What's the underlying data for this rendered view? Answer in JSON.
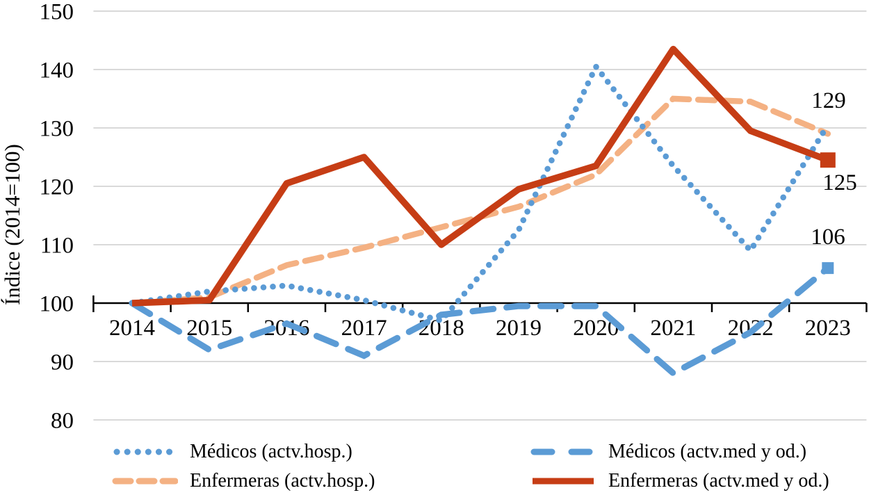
{
  "chart_data": {
    "type": "line",
    "title": "",
    "ylabel": "Índice (2014=100)",
    "xlabel": "",
    "ylim": [
      80,
      150
    ],
    "grid": true,
    "legend_position": "bottom",
    "x": [
      "2014",
      "2015",
      "2016",
      "2017",
      "2018",
      "2019",
      "2020",
      "2021",
      "2022",
      "2023"
    ],
    "y_ticks": [
      150,
      140,
      130,
      120,
      110,
      100,
      90,
      80
    ],
    "series": [
      {
        "name": "Médicos (actv.hosp.)",
        "color": "#5B9BD5",
        "style": "dotted",
        "end_marker": false,
        "values": [
          100,
          102,
          103,
          100.5,
          97,
          112.5,
          140.5,
          123.5,
          109,
          130.5
        ]
      },
      {
        "name": "Médicos (actv.med y od.)",
        "color": "#5B9BD5",
        "style": "long-dash",
        "end_marker": true,
        "end_label": "106",
        "values": [
          100,
          92,
          96.5,
          91,
          98,
          99.5,
          99.5,
          88,
          95,
          106
        ]
      },
      {
        "name": "Enfermeras (actv.hosp.)",
        "color": "#F4B183",
        "style": "dashed",
        "end_marker": false,
        "end_label": "129",
        "values": [
          100,
          101,
          106.5,
          109.5,
          113,
          116.5,
          122,
          135,
          134.5,
          129
        ]
      },
      {
        "name": "Enfermeras (actv.med y od.)",
        "color": "#C63D15",
        "style": "solid",
        "end_marker": true,
        "end_label": "125",
        "values": [
          100,
          100.5,
          120.5,
          125,
          110,
          119.5,
          123.5,
          143.5,
          129.5,
          124.5
        ]
      }
    ],
    "end_labels": {
      "enfermeras_hosp": "129",
      "enfermeras_med": "125",
      "medicos_med": "106"
    },
    "colors": {
      "blue": "#5B9BD5",
      "orange": "#F4B183",
      "red": "#C63D15",
      "gridline": "#D9D9D9",
      "axis": "#000000"
    }
  }
}
